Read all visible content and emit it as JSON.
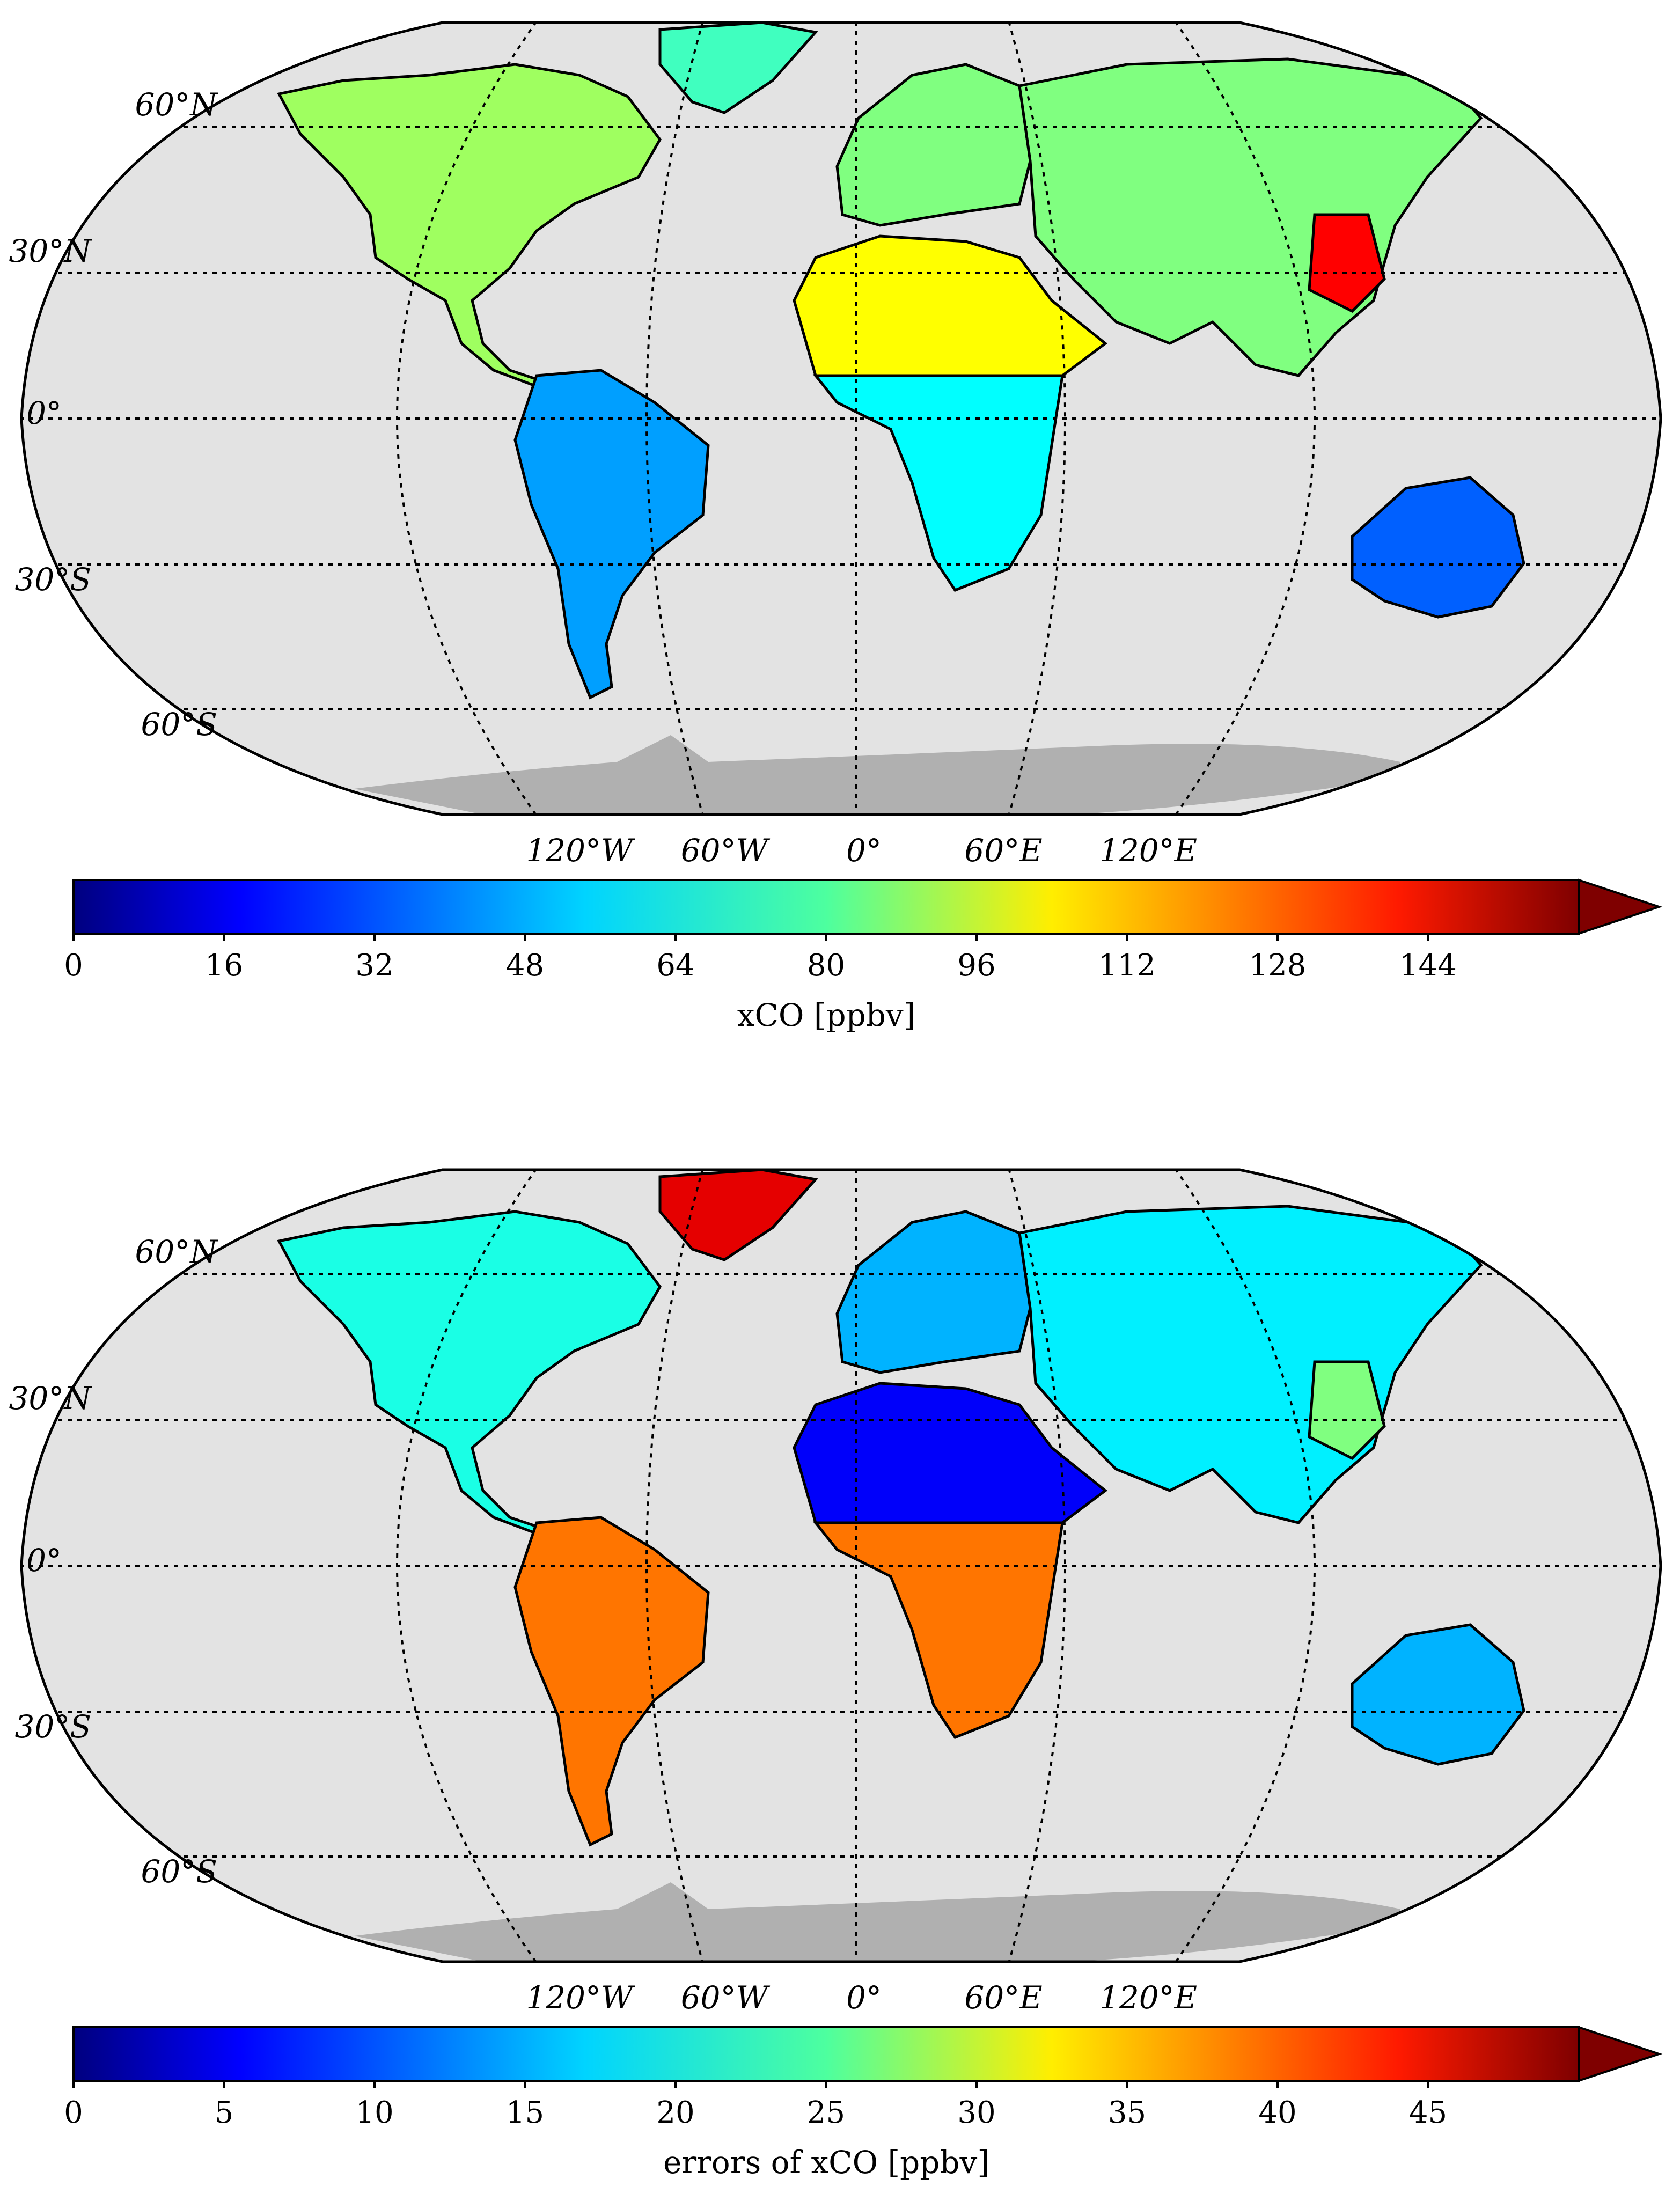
{
  "panels": [
    {
      "id": "xco",
      "lat_labels": [
        "60°N",
        "30°N",
        "0°",
        "30°S",
        "60°S"
      ],
      "lon_labels": [
        "120°W",
        "60°W",
        "0°",
        "60°E",
        "120°E"
      ],
      "colorbar": {
        "label": "xCO [ppbv]",
        "ticks": [
          "0",
          "16",
          "32",
          "48",
          "64",
          "80",
          "96",
          "112",
          "128",
          "144"
        ],
        "range": [
          0,
          160
        ],
        "extend": "max",
        "colormap": "jet"
      },
      "colors": {
        "ocean": "#e3e3e3",
        "antarctica": "#b0b0b0"
      },
      "regions": [
        {
          "name": "north-america",
          "value": 85
        },
        {
          "name": "south-america",
          "value": 45
        },
        {
          "name": "europe",
          "value": 80
        },
        {
          "name": "africa-north",
          "value": 100
        },
        {
          "name": "africa-south",
          "value": 60
        },
        {
          "name": "asia",
          "value": 80
        },
        {
          "name": "east-china",
          "value": 140
        },
        {
          "name": "australia",
          "value": 35
        },
        {
          "name": "greenland",
          "value": 70
        }
      ]
    },
    {
      "id": "xco-errors",
      "lat_labels": [
        "60°N",
        "30°N",
        "0°",
        "30°S",
        "60°S"
      ],
      "lon_labels": [
        "120°W",
        "60°W",
        "0°",
        "60°E",
        "120°E"
      ],
      "colorbar": {
        "label": "errors of xCO [ppbv]",
        "ticks": [
          "0",
          "5",
          "10",
          "15",
          "20",
          "25",
          "30",
          "35",
          "40",
          "45"
        ],
        "range": [
          0,
          50
        ],
        "extend": "max",
        "colormap": "jet"
      },
      "colors": {
        "ocean": "#e3e3e3",
        "antarctica": "#b0b0b0"
      },
      "regions": [
        {
          "name": "north-america",
          "value": 20
        },
        {
          "name": "south-america",
          "value": 38
        },
        {
          "name": "europe",
          "value": 15
        },
        {
          "name": "africa-north",
          "value": 6
        },
        {
          "name": "africa-south",
          "value": 38
        },
        {
          "name": "asia",
          "value": 18
        },
        {
          "name": "east-china",
          "value": 25
        },
        {
          "name": "australia",
          "value": 15
        },
        {
          "name": "greenland",
          "value": 45
        }
      ]
    }
  ]
}
